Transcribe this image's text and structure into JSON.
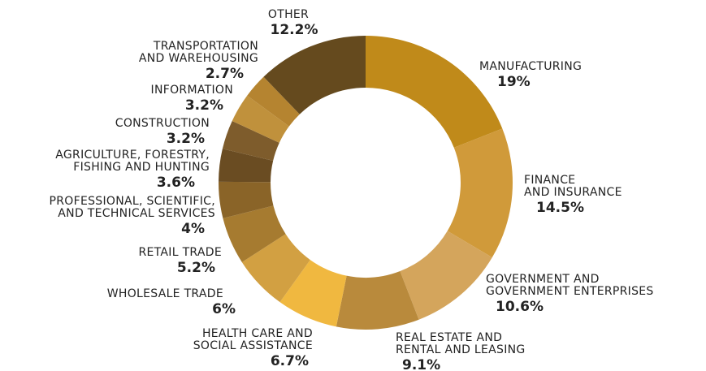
{
  "chart_data": {
    "type": "pie",
    "donut": true,
    "categories": [
      [
        "MANUFACTURING"
      ],
      [
        "FINANCE",
        "AND INSURANCE"
      ],
      [
        "GOVERNMENT AND",
        "GOVERNMENT ENTERPRISES"
      ],
      [
        "REAL ESTATE AND",
        "RENTAL AND LEASING"
      ],
      [
        "HEALTH CARE AND",
        "SOCIAL ASSISTANCE"
      ],
      [
        "WHOLESALE TRADE"
      ],
      [
        "RETAIL TRADE"
      ],
      [
        "PROFESSIONAL, SCIENTIFIC,",
        "AND TECHNICAL SERVICES"
      ],
      [
        "AGRICULTURE, FORESTRY,",
        "FISHING AND HUNTING"
      ],
      [
        "CONSTRUCTION"
      ],
      [
        "INFORMATION"
      ],
      [
        "TRANSPORTATION",
        "AND WAREHOUSING"
      ],
      [
        "OTHER"
      ]
    ],
    "values": [
      19,
      14.5,
      10.6,
      9.1,
      6.7,
      6,
      5.2,
      4,
      3.6,
      3.2,
      3.2,
      2.7,
      12.2
    ],
    "value_labels": [
      "19%",
      "14.5%",
      "10.6%",
      "9.1%",
      "6.7%",
      "6%",
      "5.2%",
      "4%",
      "3.6%",
      "3.2%",
      "3.2%",
      "2.7%",
      "12.2%"
    ],
    "colors": [
      "#c08a1a",
      "#d09a3a",
      "#d4a55c",
      "#b98a3c",
      "#f0b840",
      "#d2a042",
      "#a67b30",
      "#8a6428",
      "#6a4c22",
      "#7e5c2c",
      "#c0913c",
      "#b58430",
      "#654a1e"
    ]
  }
}
